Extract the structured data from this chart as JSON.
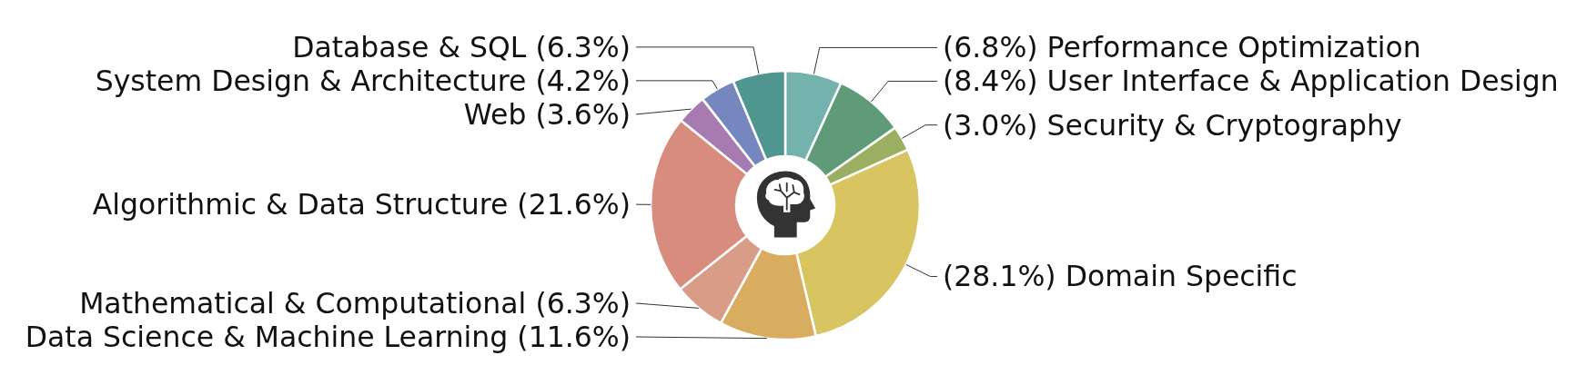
{
  "chart_data": {
    "type": "donut",
    "categories": [
      "Performance Optimization",
      "User Interface & Application Design",
      "Security & Cryptography",
      "Domain Specific",
      "Data Science & Machine Learning",
      "Mathematical & Computational",
      "Algorithmic & Data Structure",
      "Web",
      "System Design & Architecture",
      "Database & SQL"
    ],
    "values": [
      6.8,
      8.4,
      3.0,
      28.1,
      11.6,
      6.3,
      21.6,
      3.6,
      4.2,
      6.3
    ],
    "value_labels": [
      "(6.8%)",
      "(8.4%)",
      "(3.0%)",
      "(28.1%)",
      "(11.6%)",
      "(6.3%)",
      "(21.6%)",
      "(3.6%)",
      "(4.2%)",
      "(6.3%)"
    ],
    "colors": [
      "#74b3ad",
      "#5f9b78",
      "#9aaf62",
      "#d9c462",
      "#d8ad60",
      "#d89c87",
      "#d88c7e",
      "#a87ab2",
      "#7687c0",
      "#4f9690"
    ]
  }
}
